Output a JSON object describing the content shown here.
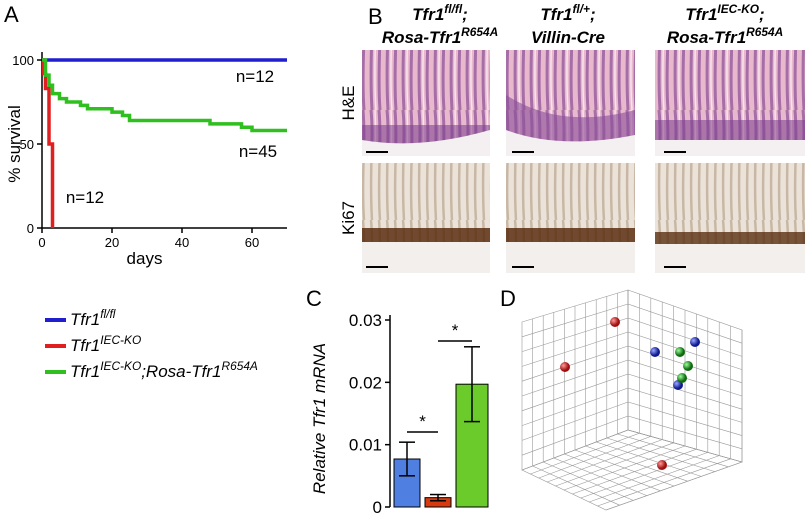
{
  "panel_letters": [
    "A",
    "B",
    "C",
    "D"
  ],
  "chart_data": [
    {
      "type": "line",
      "step": true,
      "x_label": "days",
      "y_label": "% survival",
      "xlim": [
        0,
        70
      ],
      "ylim": [
        0,
        100
      ],
      "xticks": [
        0,
        20,
        40,
        60
      ],
      "yticks": [
        0,
        50,
        100
      ],
      "series": [
        {
          "name": [
            {
              "text": "Tfr1"
            },
            {
              "sup": "fl/fl"
            }
          ],
          "color": "#1f1fd0",
          "label": "n=12",
          "x": [
            0,
            70
          ],
          "values": [
            100,
            100
          ]
        },
        {
          "name": [
            {
              "text": "Tfr1"
            },
            {
              "sup": "IEC-KO"
            }
          ],
          "color": "#e02020",
          "label": "n=12",
          "x": [
            0,
            0.5,
            0.5,
            1,
            1,
            2,
            2,
            3,
            3
          ],
          "values": [
            100,
            100,
            92,
            92,
            83,
            83,
            50,
            50,
            0
          ]
        },
        {
          "name": [
            {
              "text": "Tfr1"
            },
            {
              "sup": "IEC-KO"
            },
            {
              "text": ";Rosa-Tfr1"
            },
            {
              "sup": "R654A"
            }
          ],
          "color": "#2fbf1f",
          "label": "n=45",
          "x": [
            0,
            1,
            1,
            2,
            2,
            3,
            3,
            5,
            5,
            7,
            7,
            11,
            11,
            13,
            13,
            20,
            20,
            23,
            23,
            25,
            25,
            48,
            48,
            57,
            57,
            60,
            60,
            70
          ],
          "values": [
            100,
            100,
            91,
            91,
            85,
            85,
            80,
            80,
            77,
            77,
            75,
            75,
            73,
            73,
            71,
            71,
            69,
            69,
            67,
            67,
            64,
            64,
            62,
            62,
            60,
            60,
            58,
            58
          ]
        }
      ]
    },
    {
      "type": "bar",
      "y_label": "Relative Tfr1 mRNA",
      "ylim": [
        0,
        0.03
      ],
      "yticks": [
        0,
        0.01,
        0.02,
        0.03
      ],
      "categories": [
        null,
        null,
        null
      ],
      "values": [
        0.0077,
        0.0015,
        0.0197
      ],
      "errors": [
        0.0027,
        0.0005,
        0.006
      ],
      "colors": [
        "#4f7fe0",
        "#d83a10",
        "#6acb2a"
      ],
      "annotations": [
        "*",
        "*"
      ]
    }
  ],
  "panel_b": {
    "columns": [
      {
        "lines": [
          [
            {
              "text": "Tfr1"
            },
            {
              "sup": "fl/fl"
            },
            {
              "text": ";"
            }
          ],
          [
            {
              "text": "Rosa-Tfr1"
            },
            {
              "sup": "R654A"
            }
          ]
        ]
      },
      {
        "lines": [
          [
            {
              "text": "Tfr1"
            },
            {
              "sup": "fl/+"
            },
            {
              "text": ";"
            }
          ],
          [
            {
              "text": "Villin-Cre"
            }
          ]
        ]
      },
      {
        "lines": [
          [
            {
              "text": "Tfr1"
            },
            {
              "sup": "IEC-KO"
            },
            {
              "text": ";"
            }
          ],
          [
            {
              "text": "Rosa-Tfr1"
            },
            {
              "sup": "R654A"
            }
          ]
        ]
      }
    ],
    "rows": [
      "H&E",
      "Ki67"
    ]
  }
}
